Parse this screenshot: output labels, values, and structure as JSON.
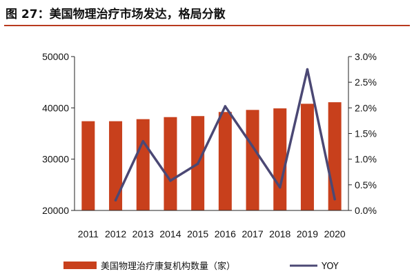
{
  "title": "图 27：美国物理治疗市场发达，格局分散",
  "colors": {
    "bar": "#c8401c",
    "line": "#4b4874",
    "rule": "#b83a1e",
    "axis": "#222222"
  },
  "chart_data": {
    "type": "bar+line",
    "categories": [
      "2011",
      "2012",
      "2013",
      "2014",
      "2015",
      "2016",
      "2017",
      "2018",
      "2019",
      "2020"
    ],
    "series": [
      {
        "name": "美国物理治疗康复机构数量（家）",
        "type": "bar",
        "axis": "left",
        "values": [
          37400,
          37400,
          37800,
          38200,
          38400,
          39200,
          39600,
          39900,
          40800,
          41100
        ]
      },
      {
        "name": "YOY",
        "type": "line",
        "axis": "right",
        "values": [
          null,
          0.002,
          0.0135,
          0.0058,
          0.0091,
          0.0203,
          0.0125,
          0.0045,
          0.0275,
          0.0022
        ]
      }
    ],
    "y_left": {
      "min": 20000,
      "max": 50000,
      "ticks": [
        "20000",
        "30000",
        "40000",
        "50000"
      ]
    },
    "y_right": {
      "min": 0,
      "max": 0.03,
      "ticks": [
        "0.0%",
        "0.5%",
        "1.0%",
        "1.5%",
        "2.0%",
        "2.5%",
        "3.0%"
      ]
    },
    "grid": false,
    "legend_position": "bottom"
  }
}
